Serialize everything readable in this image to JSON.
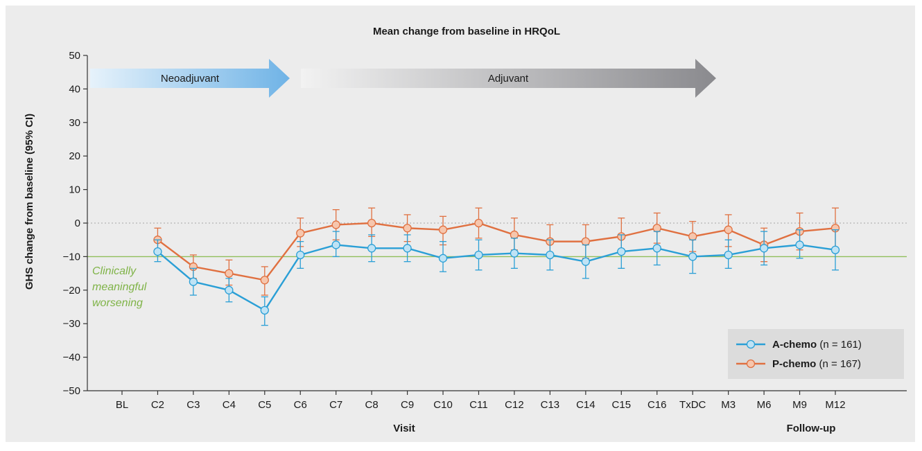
{
  "chart_data": {
    "type": "line",
    "title": "Mean change from baseline in HRQoL",
    "xlabel": "Visit",
    "xlabel2": "Follow-up",
    "ylabel": "GHS change from baseline (95% CI)",
    "ylim": [
      -50,
      50
    ],
    "yticks": [
      50,
      40,
      30,
      20,
      10,
      0,
      -10,
      -20,
      -30,
      -40,
      -50
    ],
    "categories": [
      "BL",
      "C2",
      "C3",
      "C4",
      "C5",
      "C6",
      "C7",
      "C8",
      "C9",
      "C10",
      "C11",
      "C12",
      "C13",
      "C14",
      "C15",
      "C16",
      "TxDC",
      "M3",
      "M6",
      "M9",
      "M12"
    ],
    "phases": [
      {
        "label": "Neoadjuvant",
        "color": "#6fb3e6"
      },
      {
        "label": "Adjuvant",
        "color": "#8a8a8e"
      }
    ],
    "reference_lines": [
      {
        "y": 0,
        "style": "dotted",
        "color": "#b3b3b3"
      },
      {
        "y": -10,
        "style": "solid",
        "color": "#8fbf5a",
        "label_lines": [
          "Clinically",
          "meaningful",
          "worsening"
        ]
      }
    ],
    "legend_position": "bottom-right",
    "series": [
      {
        "name": "A-chemo",
        "n_label": "(n = 161)",
        "color": "#2a9fd6",
        "values": [
          null,
          -8.5,
          -17.5,
          -20,
          -26,
          -9.5,
          -6.5,
          -7.5,
          -7.5,
          -10.5,
          -9.5,
          -9,
          -9.5,
          -11.5,
          -8.5,
          -7.5,
          -10,
          -9.5,
          -7.5,
          -6.5,
          -8
        ],
        "lower": [
          null,
          -11.5,
          -21.5,
          -23.5,
          -30.5,
          -13.5,
          -10,
          -11.5,
          -11.5,
          -14.5,
          -14,
          -13.5,
          -14,
          -16.5,
          -13.5,
          -12.5,
          -15,
          -13.5,
          -12.5,
          -10.5,
          -14
        ],
        "upper": [
          null,
          -5,
          -13.5,
          -16.5,
          -22,
          -5.5,
          -2.5,
          -3.5,
          -3.5,
          -5.5,
          -5,
          -4.5,
          -5,
          -6.5,
          -3.5,
          -2.5,
          -5,
          -5,
          -2.5,
          -2,
          -2
        ]
      },
      {
        "name": "P-chemo",
        "n_label": "(n = 167)",
        "color": "#e07040",
        "values": [
          null,
          -5,
          -13,
          -15,
          -17,
          -3,
          -0.5,
          0,
          -1.5,
          -2,
          0,
          -3.5,
          -5.5,
          -5.5,
          -4,
          -1.5,
          -4,
          -2,
          -6.5,
          -2.5,
          -1.5
        ],
        "lower": [
          null,
          -8.5,
          -16.5,
          -18.5,
          -21.5,
          -7,
          -5,
          -4,
          -5.5,
          -6.5,
          -4.5,
          -8,
          -10,
          -10.5,
          -9,
          -6,
          -8.5,
          -7,
          -11.5,
          -8,
          -7.5
        ],
        "upper": [
          null,
          -1.5,
          -9.5,
          -11,
          -13,
          1.5,
          4,
          4.5,
          2.5,
          2,
          4.5,
          1.5,
          -0.5,
          -0.5,
          1.5,
          3,
          0.5,
          2.5,
          -1.5,
          3,
          4.5
        ]
      }
    ]
  }
}
